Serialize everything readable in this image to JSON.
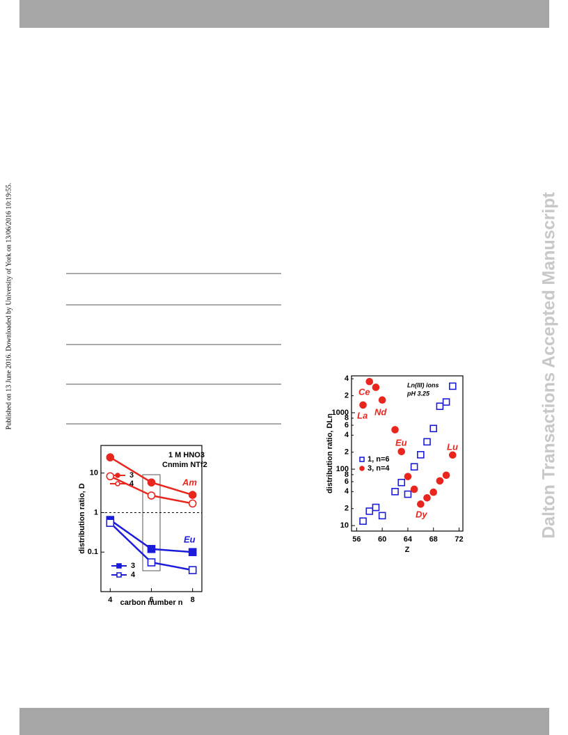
{
  "sidebar": {
    "left": "Published on 13 June 2016. Downloaded by University of York on 13/06/2016 10:19:55.",
    "right": "Dalton Transactions Accepted Manuscript"
  },
  "chart_data": [
    {
      "type": "line",
      "log_y": true,
      "x": [
        4,
        6,
        8
      ],
      "xlim": [
        3.55,
        8.45
      ],
      "xticks": [
        4,
        6,
        8
      ],
      "ylim": [
        0.01,
        50
      ],
      "yticks": [
        0.1,
        1,
        10
      ],
      "reference_line": 1,
      "x_label": "carbon number n",
      "y_label": "distribution ratio, D",
      "annotations": [
        {
          "text": "1 M HNO3",
          "color": "#000000"
        },
        {
          "text": "Cnmim NTf2",
          "color": "#000000"
        },
        {
          "text": "Am",
          "color": "#e8261e"
        },
        {
          "text": "Eu",
          "color": "#1b1bdb"
        }
      ],
      "series": [
        {
          "name": "3",
          "color": "#e8261e",
          "marker": "circle",
          "filled": true,
          "values": [
            25,
            5.8,
            2.8
          ]
        },
        {
          "name": "4",
          "color": "#e8261e",
          "marker": "circle",
          "filled": false,
          "values": [
            8.3,
            2.7,
            1.7
          ]
        },
        {
          "name": "3",
          "color": "#1b1bdb",
          "marker": "square",
          "filled": true,
          "values": [
            0.65,
            0.12,
            0.1
          ]
        },
        {
          "name": "4",
          "color": "#1b1bdb",
          "marker": "square",
          "filled": false,
          "values": [
            0.55,
            0.055,
            0.035
          ]
        }
      ]
    },
    {
      "type": "scatter",
      "log_y": true,
      "x": [
        57,
        58,
        59,
        60,
        62,
        63,
        64,
        65,
        66,
        67,
        68,
        69,
        70,
        71
      ],
      "xlim": [
        55.2,
        72.6
      ],
      "xticks": [
        56,
        60,
        64,
        68,
        72
      ],
      "ylim": [
        8,
        4500
      ],
      "yticks": [
        10,
        {
          "value": 20,
          "label": "2"
        },
        {
          "value": 40,
          "label": "4"
        },
        {
          "value": 60,
          "label": "6"
        },
        {
          "value": 80,
          "label": "8"
        },
        100,
        {
          "value": 200,
          "label": "2"
        },
        {
          "value": 400,
          "label": "4"
        },
        {
          "value": 600,
          "label": "6"
        },
        {
          "value": 800,
          "label": "8"
        },
        1000,
        {
          "value": 2000,
          "label": "2"
        },
        {
          "value": 4000,
          "label": "4"
        }
      ],
      "x_label": "Z",
      "y_label": "distribution ratio, DLn",
      "annotations": [
        {
          "text": "Ln(III) ions",
          "color": "#000000"
        },
        {
          "text": "pH 3.25",
          "color": "#000000"
        },
        {
          "text": "Ce",
          "color": "#e8261e"
        },
        {
          "text": "La",
          "color": "#e8261e"
        },
        {
          "text": "Nd",
          "color": "#e8261e"
        },
        {
          "text": "Eu",
          "color": "#e8261e"
        },
        {
          "text": "Lu",
          "color": "#e8261e"
        },
        {
          "text": "Dy",
          "color": "#e8261e"
        }
      ],
      "series": [
        {
          "name": "1, n=6",
          "color": "#1b1bdb",
          "marker": "square",
          "filled": false,
          "values": [
            12,
            18,
            21,
            15,
            40,
            58,
            36,
            110,
            180,
            305,
            525,
            1300,
            1550,
            2950
          ]
        },
        {
          "name": "3, n=4",
          "color": "#e8261e",
          "marker": "circle",
          "filled": true,
          "values": [
            1370,
            3560,
            2820,
            1680,
            500,
            205,
            74,
            44,
            24,
            31,
            39,
            62,
            78,
            178
          ]
        }
      ]
    }
  ]
}
